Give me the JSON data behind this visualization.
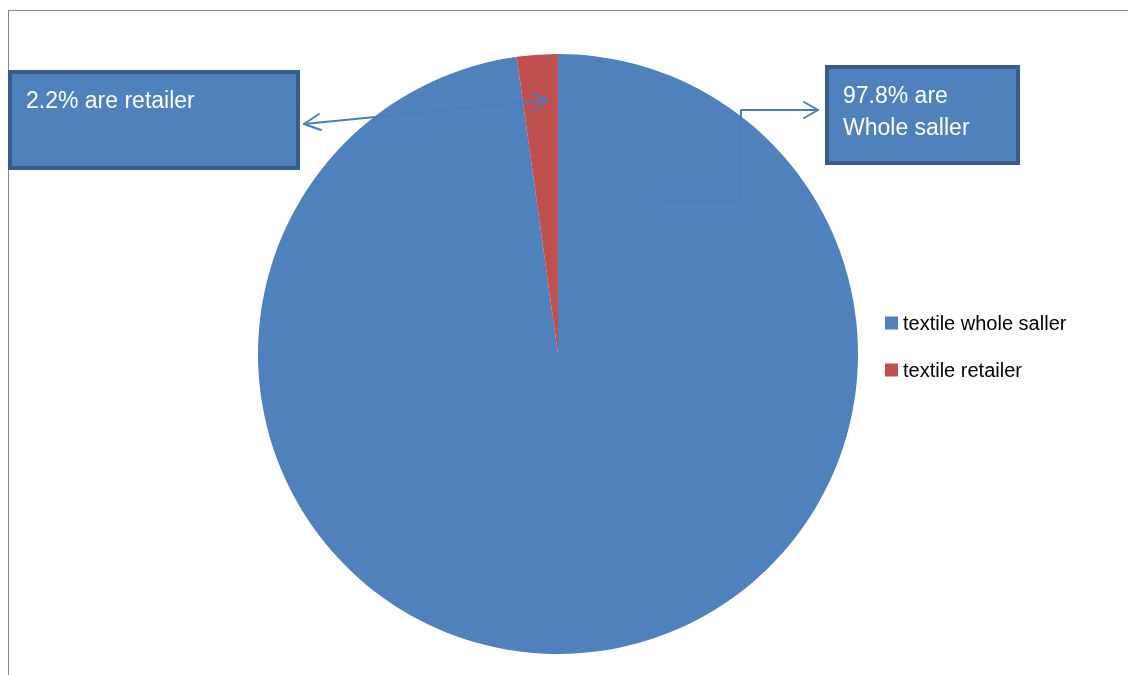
{
  "chart_data": {
    "type": "pie",
    "categories": [
      "textile whole saller",
      "textile retailer"
    ],
    "values": [
      97.8,
      2.2
    ],
    "colors": [
      "#4f81bd",
      "#c0504d"
    ],
    "legend": "right",
    "annotations": [
      "2.2% are retailer",
      "97.8% are Whole saller"
    ]
  }
}
